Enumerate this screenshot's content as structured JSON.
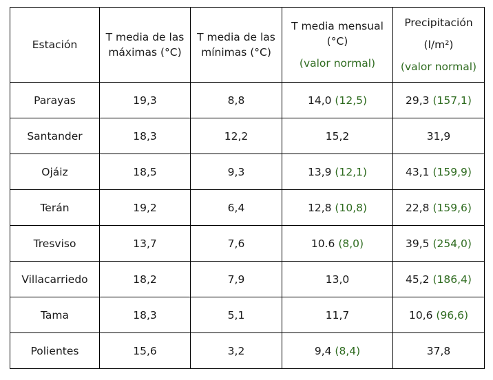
{
  "header": {
    "station": "Estación",
    "tmax": [
      "T media de las",
      "máximas (°C)"
    ],
    "tmin": [
      "T media de las",
      "mínimas  (°C)"
    ],
    "tmean": [
      "T media mensual",
      "(°C)"
    ],
    "tmean_normal": "(valor normal)",
    "precip": [
      "Precipitación",
      "(l/m²)"
    ],
    "precip_normal": "(valor normal)"
  },
  "rows": [
    {
      "station": "Parayas",
      "tmax": "19,3",
      "tmin": "8,8",
      "tmean": "14,0",
      "tmean_normal": "(12,5)",
      "precip": "29,3",
      "precip_normal": "(157,1)"
    },
    {
      "station": "Santander",
      "tmax": "18,3",
      "tmin": "12,2",
      "tmean": "15,2",
      "tmean_normal": "",
      "precip": "31,9",
      "precip_normal": ""
    },
    {
      "station": "Ojáiz",
      "tmax": "18,5",
      "tmin": "9,3",
      "tmean": "13,9",
      "tmean_normal": "(12,1)",
      "precip": "43,1",
      "precip_normal": "(159,9)"
    },
    {
      "station": "Terán",
      "tmax": "19,2",
      "tmin": "6,4",
      "tmean": "12,8",
      "tmean_normal": "(10,8)",
      "precip": "22,8",
      "precip_normal": "(159,6)"
    },
    {
      "station": "Tresviso",
      "tmax": "13,7",
      "tmin": "7,6",
      "tmean": "10.6",
      "tmean_normal": "(8,0)",
      "precip": "39,5",
      "precip_normal": "(254,0)"
    },
    {
      "station": "Villacarriedo",
      "tmax": "18,2",
      "tmin": "7,9",
      "tmean": "13,0",
      "tmean_normal": "",
      "precip": "45,2",
      "precip_normal": "(186,4)"
    },
    {
      "station": "Tama",
      "tmax": "18,3",
      "tmin": "5,1",
      "tmean": "11,7",
      "tmean_normal": "",
      "precip": "10,6",
      "precip_normal": "(96,6)"
    },
    {
      "station": "Polientes",
      "tmax": "15,6",
      "tmin": "3,2",
      "tmean": "9,4",
      "tmean_normal": "(8,4)",
      "precip": "37,8",
      "precip_normal": ""
    }
  ],
  "colors": {
    "normal_value": "#2e6b1f",
    "text": "#1a1a1a",
    "border": "#000000"
  }
}
